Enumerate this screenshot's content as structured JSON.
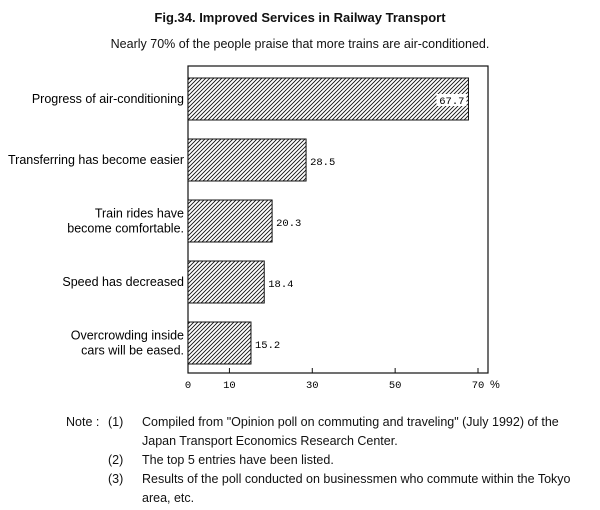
{
  "title": "Fig.34. Improved Services in Railway Transport",
  "subtitle": "Nearly 70% of the people praise that more trains are air-conditioned.",
  "chart_data": {
    "type": "bar",
    "orientation": "horizontal",
    "categories": [
      "Progress of air-conditioning",
      "Transferring has become easier",
      "Train rides have\nbecome comfortable.",
      "Speed has decreased",
      "Overcrowding inside\ncars will be eased."
    ],
    "values": [
      67.7,
      28.5,
      20.3,
      18.4,
      15.2
    ],
    "value_labels": [
      "67.7",
      "28.5",
      "20.3",
      "18.4",
      "15.2"
    ],
    "xlim": [
      0,
      70
    ],
    "ticks": [
      "0",
      "10",
      "30",
      "50",
      "70"
    ],
    "tick_values": [
      0,
      10,
      30,
      50,
      70
    ],
    "unit": "%",
    "bar_fill": "diagonal-hatch",
    "grid": false
  },
  "notes": {
    "label": "Note :",
    "items": [
      {
        "num": "(1)",
        "text": "Compiled from \"Opinion poll on commuting and traveling\" (July 1992) of the Japan Transport Economics Research Center."
      },
      {
        "num": "(2)",
        "text": "The top 5 entries have been listed."
      },
      {
        "num": "(3)",
        "text": "Results of the poll conducted on businessmen who commute within the Tokyo area, etc."
      }
    ]
  }
}
